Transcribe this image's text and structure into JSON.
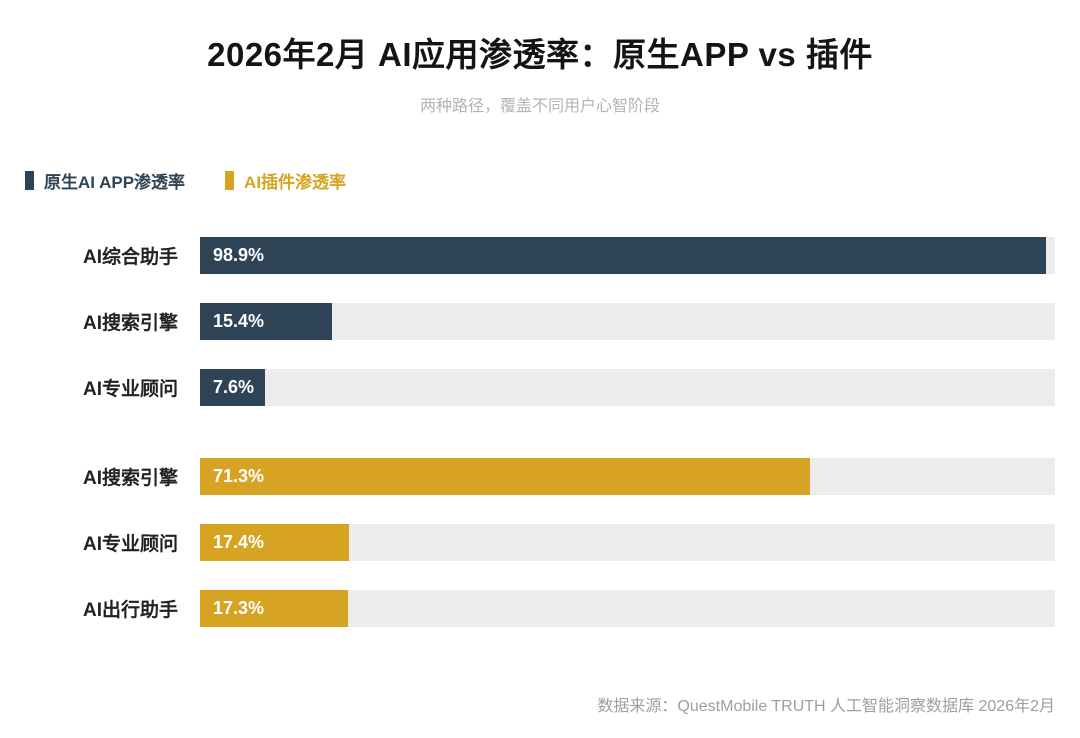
{
  "title": "2026年2月 AI应用渗透率：原生APP vs 插件",
  "subtitle": "两种路径，覆盖不同用户心智阶段",
  "legend": [
    {
      "label": "原生AI APP渗透率",
      "color": "#2e4456",
      "text_color": "#2e4456"
    },
    {
      "label": "AI插件渗透率",
      "color": "#d6a422",
      "text_color": "#d6a422"
    }
  ],
  "footer": "数据来源：QuestMobile TRUTH 人工智能洞察数据库 2026年2月",
  "colors": {
    "native_app": "#2e4456",
    "plugin": "#d6a422",
    "track": "#ececec"
  },
  "chart_data": {
    "type": "bar",
    "orientation": "horizontal",
    "title": "2026年2月 AI应用渗透率：原生APP vs 插件",
    "subtitle": "两种路径，覆盖不同用户心智阶段",
    "xlabel": "",
    "ylabel": "",
    "xlim": [
      0,
      100
    ],
    "grid": false,
    "legend_position": "top-left",
    "value_suffix": "%",
    "series": [
      {
        "name": "原生AI APP渗透率",
        "color": "#2e4456",
        "categories": [
          "AI综合助手",
          "AI搜索引擎",
          "AI专业顾问"
        ],
        "values": [
          98.9,
          15.4,
          7.6
        ],
        "value_labels": [
          "98.9%",
          "15.4%",
          "7.6%"
        ]
      },
      {
        "name": "AI插件渗透率",
        "color": "#d6a422",
        "categories": [
          "AI搜索引擎",
          "AI专业顾问",
          "AI出行助手"
        ],
        "values": [
          71.3,
          17.4,
          17.3
        ],
        "value_labels": [
          "71.3%",
          "17.4%",
          "17.3%"
        ]
      }
    ]
  }
}
